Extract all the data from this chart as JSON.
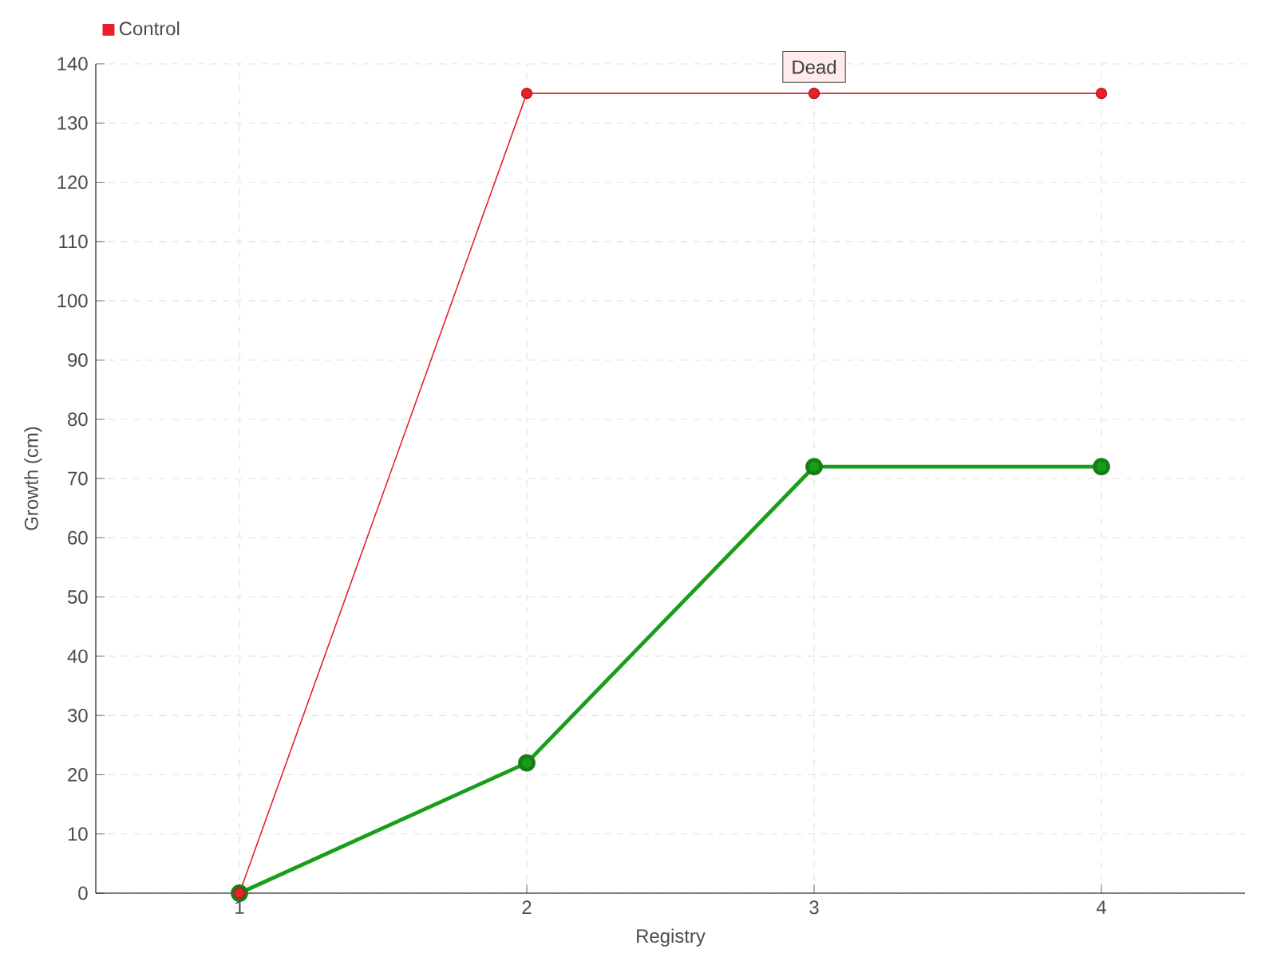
{
  "chart_data": {
    "type": "line",
    "xlabel": "Registry",
    "ylabel": "Growth (cm)",
    "categories": [
      "1",
      "2",
      "3",
      "4"
    ],
    "series": [
      {
        "color": "#1a9e1a",
        "values": [
          0,
          22,
          72,
          72
        ]
      },
      {
        "name": "Control",
        "color": "#e8202a",
        "values": [
          0,
          135,
          135,
          135
        ]
      }
    ],
    "ylim": [
      0,
      140
    ],
    "yticks": [
      0,
      10,
      20,
      30,
      40,
      50,
      60,
      70,
      80,
      90,
      100,
      110,
      120,
      130,
      140
    ],
    "grid": true,
    "legend": "top left",
    "marker": "circle",
    "annotations": [
      {
        "text": "Dead",
        "x": "3",
        "y": 135
      }
    ]
  }
}
